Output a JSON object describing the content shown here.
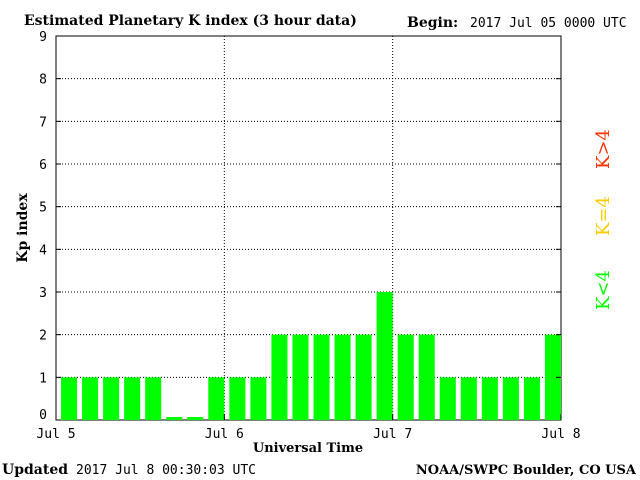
{
  "header": {
    "title": "Estimated Planetary K index (3 hour data)",
    "begin_label": "Begin:",
    "begin_value": "2017 Jul 05 0000 UTC"
  },
  "footer": {
    "updated_label": "Updated",
    "updated_value": "2017 Jul  8 00:30:03 UTC",
    "source": "NOAA/SWPC Boulder, CO USA"
  },
  "legend": {
    "low": "K<4",
    "mid": "K=4",
    "high": "K>4"
  },
  "colors": {
    "low": "#00ff00",
    "mid": "#ffcc00",
    "high": "#ff3300",
    "axis": "#000000",
    "grid": "#000000"
  },
  "chart_data": {
    "type": "bar",
    "title": "Estimated Planetary K index (3 hour data)",
    "xlabel": "Universal Time",
    "ylabel": "Kp index",
    "ylim": [
      0,
      9
    ],
    "yticks": [
      "0",
      "1",
      "2",
      "3",
      "4",
      "5",
      "6",
      "7",
      "8",
      "9"
    ],
    "xticks": [
      "Jul 5",
      "Jul 6",
      "Jul 7",
      "Jul 8"
    ],
    "grid": true,
    "categories": [
      "Jul 5 00",
      "Jul 5 03",
      "Jul 5 06",
      "Jul 5 09",
      "Jul 5 12",
      "Jul 5 15",
      "Jul 5 18",
      "Jul 5 21",
      "Jul 6 00",
      "Jul 6 03",
      "Jul 6 06",
      "Jul 6 09",
      "Jul 6 12",
      "Jul 6 15",
      "Jul 6 18",
      "Jul 6 21",
      "Jul 7 00",
      "Jul 7 03",
      "Jul 7 06",
      "Jul 7 09",
      "Jul 7 12",
      "Jul 7 15",
      "Jul 7 18",
      "Jul 7 21"
    ],
    "values": [
      1,
      1,
      1,
      1,
      1,
      0.07,
      0.07,
      1,
      1,
      1,
      2,
      2,
      2,
      2,
      2,
      3,
      2,
      2,
      1,
      1,
      1,
      1,
      1,
      2
    ]
  }
}
